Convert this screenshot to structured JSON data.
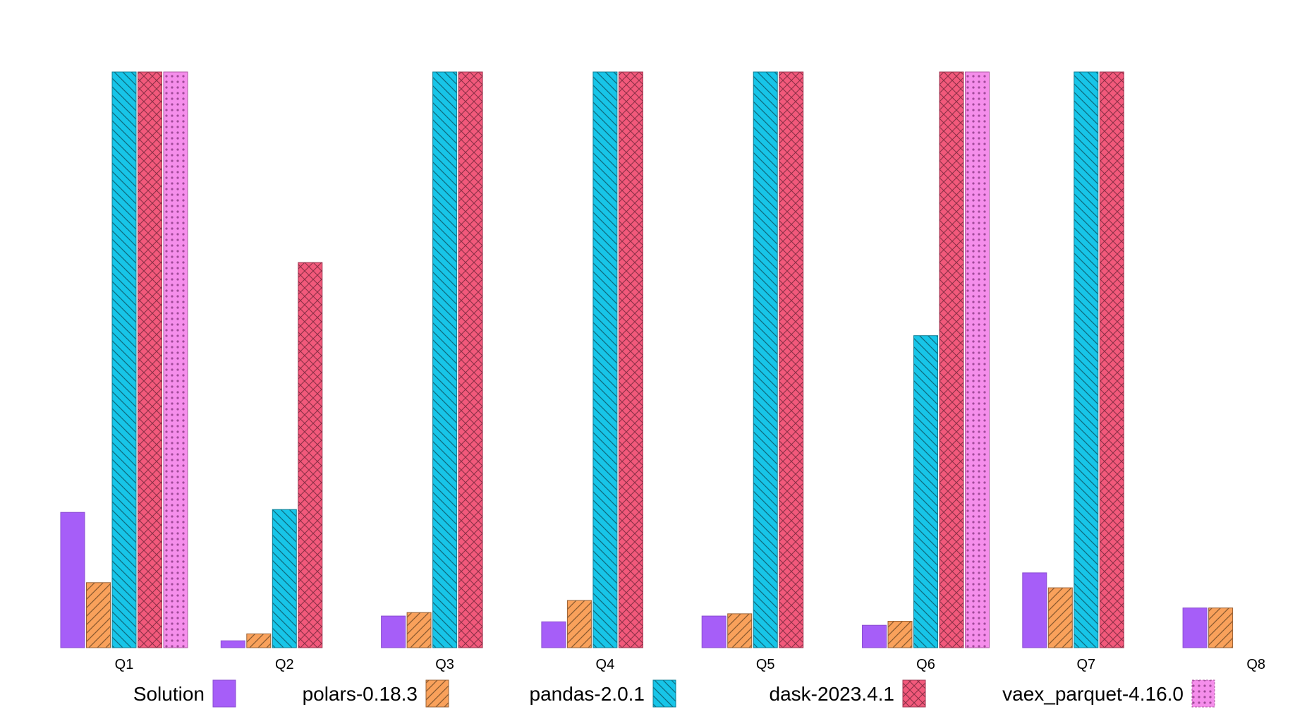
{
  "chart_data": {
    "type": "bar",
    "title": "",
    "xlabel": "",
    "ylabel": "",
    "ylim": [
      0,
      100
    ],
    "grid": false,
    "legend_position": "bottom",
    "categories": [
      "Q1",
      "Q2",
      "Q3",
      "Q4",
      "Q5",
      "Q6",
      "Q7",
      "Q8"
    ],
    "series": [
      {
        "name": "Solution",
        "color": "#A65EF8",
        "pattern": "solid",
        "values": [
          23.5,
          1.2,
          5.5,
          4.5,
          5.5,
          3.9,
          13.0,
          6.9
        ]
      },
      {
        "name": "polars-0.18.3",
        "color": "#F9A15B",
        "pattern": "hatch-diagonal",
        "values": [
          11.3,
          2.4,
          6.1,
          8.2,
          5.9,
          4.6,
          10.4,
          6.9
        ]
      },
      {
        "name": "pandas-2.0.1",
        "color": "#17C5E8",
        "pattern": "hatch-back-diagonal",
        "values": [
          100,
          24.0,
          100,
          100,
          100,
          54.2,
          100,
          null
        ]
      },
      {
        "name": "dask-2023.4.1",
        "color": "#F2597B",
        "pattern": "crosshatch",
        "values": [
          100,
          66.9,
          100,
          100,
          100,
          100,
          100,
          null
        ]
      },
      {
        "name": "vaex_parquet-4.16.0",
        "color": "#F58EEB",
        "pattern": "dots",
        "values": [
          100,
          null,
          null,
          null,
          null,
          100,
          null,
          null
        ]
      }
    ]
  }
}
